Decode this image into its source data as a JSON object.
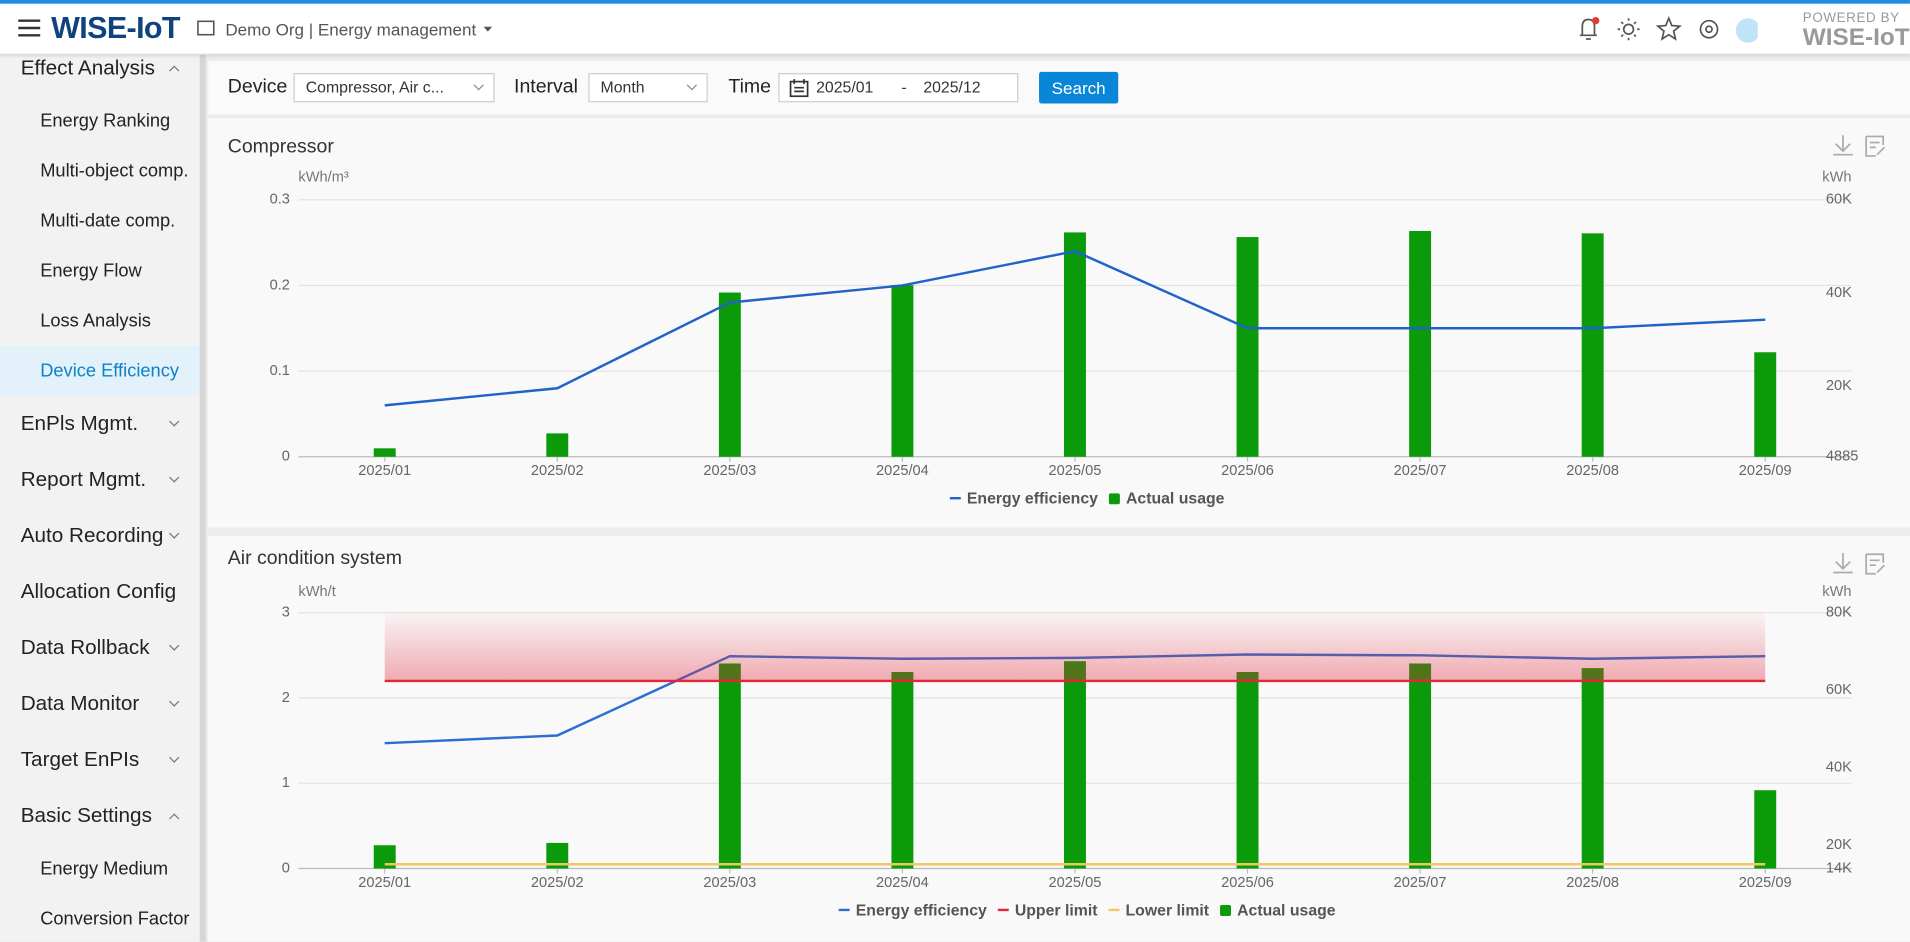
{
  "header": {
    "logo": "WISE-IoT",
    "org": "Demo Org | Energy management",
    "powered_by": "POWERED BY",
    "brand": "WISE-IoT"
  },
  "sidebar": {
    "items": [
      {
        "label": "Effect Analysis",
        "level": "section",
        "chevron": "up"
      },
      {
        "label": "Energy Ranking",
        "level": "sub"
      },
      {
        "label": "Multi-object comp.",
        "level": "sub"
      },
      {
        "label": "Multi-date comp.",
        "level": "sub"
      },
      {
        "label": "Energy Flow",
        "level": "sub"
      },
      {
        "label": "Loss Analysis",
        "level": "sub"
      },
      {
        "label": "Device Efficiency",
        "level": "sub",
        "active": true
      },
      {
        "label": "EnPls Mgmt.",
        "level": "section",
        "chevron": "down"
      },
      {
        "label": "Report Mgmt.",
        "level": "section",
        "chevron": "down"
      },
      {
        "label": "Auto Recording",
        "level": "section",
        "chevron": "down"
      },
      {
        "label": "Allocation Config",
        "level": "section"
      },
      {
        "label": "Data Rollback",
        "level": "section",
        "chevron": "down"
      },
      {
        "label": "Data Monitor",
        "level": "section",
        "chevron": "down"
      },
      {
        "label": "Target EnPIs",
        "level": "section",
        "chevron": "down"
      },
      {
        "label": "Basic Settings",
        "level": "section",
        "chevron": "up"
      },
      {
        "label": "Energy Medium",
        "level": "sub"
      },
      {
        "label": "Conversion Factor",
        "level": "sub"
      }
    ]
  },
  "filters": {
    "device_label": "Device",
    "device": "Compressor, Air c...",
    "interval_label": "Interval",
    "interval": "Month",
    "time_label": "Time",
    "start": "2025/01",
    "separator": "-",
    "end": "2025/12",
    "button": "Search"
  },
  "chart_data": [
    {
      "type": "combo",
      "title": "Compressor",
      "y_label": "kWh/m³",
      "y2_label": "kWh",
      "categories": [
        "2025/01",
        "2025/02",
        "2025/03",
        "2025/04",
        "2025/05",
        "2025/06",
        "2025/07",
        "2025/08",
        "2025/09"
      ],
      "ylim": [
        0,
        0.3
      ],
      "yticks": [
        0,
        0.1,
        0.2,
        0.3
      ],
      "y2lim": [
        4885,
        60000
      ],
      "y2ticks": [
        4885,
        {
          "value": 20000,
          "label": "20K"
        },
        {
          "value": 40000,
          "label": "40K"
        },
        {
          "value": 60000,
          "label": "60K"
        }
      ],
      "grid": true,
      "series": [
        {
          "name": "Energy efficiency",
          "type": "line",
          "color": "#1f62c8",
          "values": [
            0.06,
            0.08,
            0.18,
            0.2,
            0.24,
            0.15,
            0.15,
            0.15,
            0.16
          ]
        },
        {
          "name": "Actual usage",
          "type": "bar",
          "axis": "y2",
          "color": "#0a9a0a",
          "values": [
            6700,
            9900,
            40100,
            41700,
            53000,
            52000,
            53300,
            52800,
            27300
          ]
        }
      ]
    },
    {
      "type": "combo",
      "title": "Air condition system",
      "y_label": "kWh/t",
      "y2_label": "kWh",
      "categories": [
        "2025/01",
        "2025/02",
        "2025/03",
        "2025/04",
        "2025/05",
        "2025/06",
        "2025/07",
        "2025/08",
        "2025/09"
      ],
      "ylim": [
        0,
        3
      ],
      "yticks": [
        0,
        1,
        2,
        3
      ],
      "y2lim": [
        14000,
        80000
      ],
      "y2ticks": [
        {
          "value": 14000,
          "label": "14K"
        },
        {
          "value": 20000,
          "label": "20K"
        },
        {
          "value": 40000,
          "label": "40K"
        },
        {
          "value": 60000,
          "label": "60K"
        },
        {
          "value": 80000,
          "label": "80K"
        }
      ],
      "grid": true,
      "series": [
        {
          "name": "Energy efficiency",
          "type": "line",
          "color": "#2a6fd1",
          "values": [
            1.47,
            1.56,
            2.49,
            2.46,
            2.47,
            2.51,
            2.5,
            2.46,
            2.49
          ]
        },
        {
          "name": "Upper limit",
          "type": "line",
          "color": "#e0283a",
          "alarm_zone": true,
          "values": [
            2.2,
            2.2,
            2.2,
            2.2,
            2.2,
            2.2,
            2.2,
            2.2,
            2.2
          ]
        },
        {
          "name": "Lower limit",
          "type": "line",
          "color": "#f0c860",
          "values": [
            0.05,
            0.05,
            0.05,
            0.05,
            0.05,
            0.05,
            0.05,
            0.05,
            0.05
          ]
        },
        {
          "name": "Actual usage",
          "type": "bar",
          "axis": "y2",
          "color": "#0a9a0a",
          "values": [
            20000,
            20600,
            66900,
            64700,
            67500,
            64700,
            66900,
            65700,
            34200
          ]
        }
      ]
    }
  ]
}
